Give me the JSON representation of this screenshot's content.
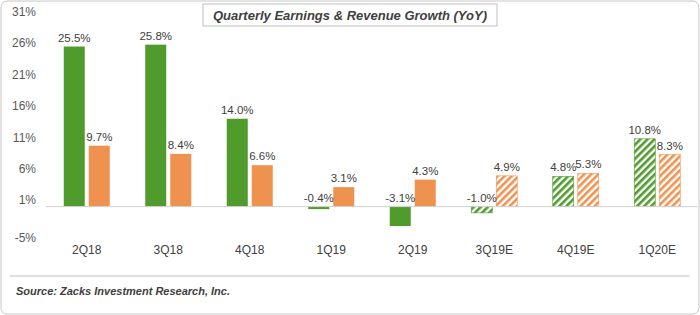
{
  "chart_data": {
    "type": "bar",
    "title": "Quarterly Earnings & Revenue Growth (YoY)",
    "source": "Source: Zacks Investment Research, Inc.",
    "categories": [
      "2Q18",
      "3Q18",
      "4Q18",
      "1Q19",
      "2Q19",
      "3Q19E",
      "4Q19E",
      "1Q20E"
    ],
    "series": [
      {
        "color": "#4f9b2c",
        "values": [
          25.5,
          25.8,
          14.0,
          -0.4,
          -3.1,
          -1.0,
          4.8,
          10.8
        ],
        "value_labels": [
          "25.5%",
          "25.8%",
          "14.0%",
          "-0.4%",
          "-3.1%",
          "-1.0%",
          "4.8%",
          "10.8%"
        ]
      },
      {
        "color": "#f0924f",
        "values": [
          9.7,
          8.4,
          6.6,
          3.1,
          4.3,
          4.9,
          5.3,
          8.3
        ],
        "value_labels": [
          "9.7%",
          "8.4%",
          "6.6%",
          "3.1%",
          "4.3%",
          "4.9%",
          "5.3%",
          "8.3%"
        ]
      }
    ],
    "ylim": [
      -5,
      31
    ],
    "yticks": [
      {
        "value": -5,
        "label": "-5%"
      },
      {
        "value": 1,
        "label": "1%"
      },
      {
        "value": 6,
        "label": "6%"
      },
      {
        "value": 11,
        "label": "11%"
      },
      {
        "value": 16,
        "label": "16%"
      },
      {
        "value": 21,
        "label": "21%"
      },
      {
        "value": 26,
        "label": "26%"
      },
      {
        "value": 31,
        "label": "31%"
      }
    ],
    "grid": false,
    "data_labels": true
  }
}
